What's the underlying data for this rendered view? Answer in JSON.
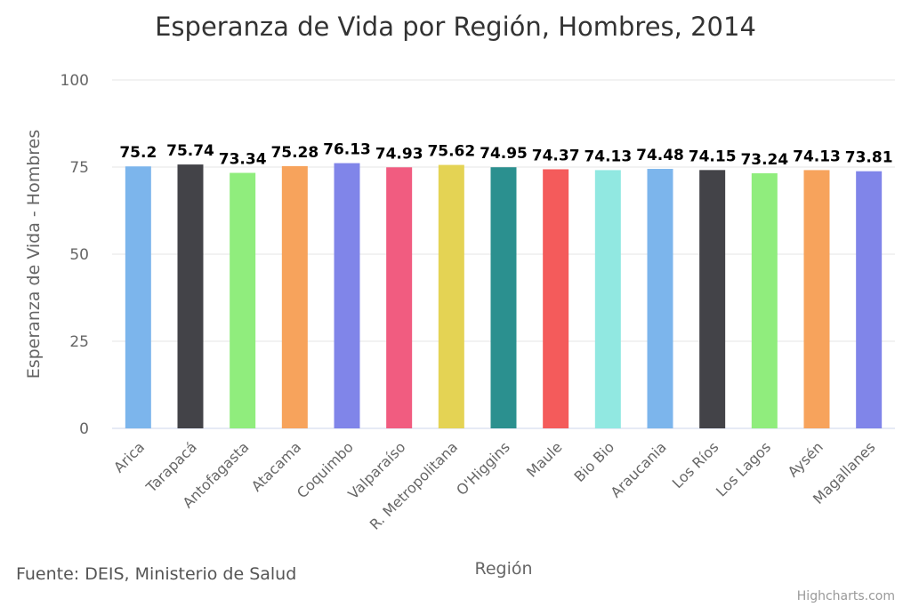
{
  "source_note": "Fuente: DEIS, Ministerio de Salud",
  "credit": "Highcharts.com",
  "chart_data": {
    "type": "bar",
    "title": "Esperanza de Vida por Región, Hombres, 2014",
    "xlabel": "Región",
    "ylabel": "Esperanza de Vida - Hombres",
    "ylim": [
      0,
      100
    ],
    "yticks": [
      0,
      25,
      50,
      75,
      100
    ],
    "grid": true,
    "categories": [
      "Arica",
      "Tarapacá",
      "Antofagasta",
      "Atacama",
      "Coquimbo",
      "Valparaíso",
      "R. Metropolitana",
      "O'Higgins",
      "Maule",
      "Bio Bio",
      "Araucania",
      "Los Ríos",
      "Los Lagos",
      "Aysén",
      "Magallanes"
    ],
    "values": [
      75.2,
      75.74,
      73.34,
      75.28,
      76.13,
      74.93,
      75.62,
      74.95,
      74.37,
      74.13,
      74.48,
      74.15,
      73.24,
      74.13,
      73.81
    ],
    "value_labels": [
      "75.2",
      "75.74",
      "73.34",
      "75.28",
      "76.13",
      "74.93",
      "75.62",
      "74.95",
      "74.37",
      "74.13",
      "74.48",
      "74.15",
      "73.24",
      "74.13",
      "73.81"
    ],
    "colors": [
      "#7cb5ec",
      "#434348",
      "#90ed7d",
      "#f7a35c",
      "#8085e9",
      "#f15c80",
      "#e4d354",
      "#2b908f",
      "#f45b5b",
      "#91e8e1",
      "#7cb5ec",
      "#434348",
      "#90ed7d",
      "#f7a35c",
      "#8085e9"
    ]
  }
}
